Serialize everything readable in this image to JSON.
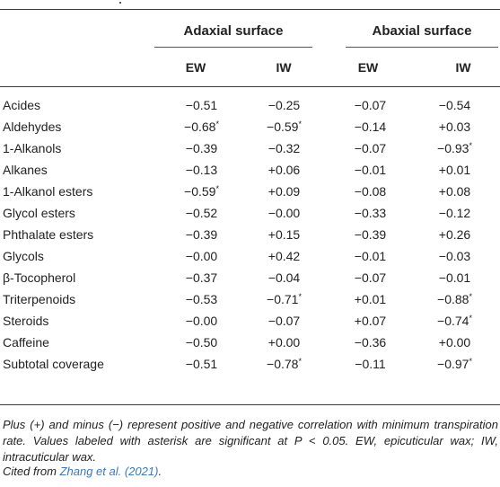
{
  "table": {
    "group_headers": [
      "Adaxial surface",
      "Abaxial surface"
    ],
    "column_headers": [
      "EW",
      "IW",
      "EW",
      "IW"
    ],
    "rows": [
      {
        "label": "Acides",
        "values": [
          "−0.51",
          "−0.25",
          "−0.07",
          "−0.54"
        ],
        "sig": [
          false,
          false,
          false,
          false
        ]
      },
      {
        "label": "Aldehydes",
        "values": [
          "−0.68",
          "−0.59",
          "−0.14",
          "+0.03"
        ],
        "sig": [
          true,
          true,
          false,
          false
        ]
      },
      {
        "label": "1-Alkanols",
        "values": [
          "−0.39",
          "−0.32",
          "−0.07",
          "−0.93"
        ],
        "sig": [
          false,
          false,
          false,
          true
        ]
      },
      {
        "label": "Alkanes",
        "values": [
          "−0.13",
          "+0.06",
          "−0.01",
          "+0.01"
        ],
        "sig": [
          false,
          false,
          false,
          false
        ]
      },
      {
        "label": "1-Alkanol esters",
        "values": [
          "−0.59",
          "+0.09",
          "−0.08",
          "+0.08"
        ],
        "sig": [
          true,
          false,
          false,
          false
        ]
      },
      {
        "label": "Glycol esters",
        "values": [
          "−0.52",
          "−0.00",
          "−0.33",
          "−0.12"
        ],
        "sig": [
          false,
          false,
          false,
          false
        ]
      },
      {
        "label": "Phthalate esters",
        "values": [
          "−0.39",
          "+0.15",
          "−0.39",
          "+0.26"
        ],
        "sig": [
          false,
          false,
          false,
          false
        ]
      },
      {
        "label": "Glycols",
        "values": [
          "−0.00",
          "+0.42",
          "−0.01",
          "−0.03"
        ],
        "sig": [
          false,
          false,
          false,
          false
        ]
      },
      {
        "label": "β-Tocopherol",
        "values": [
          "−0.37",
          "−0.04",
          "−0.07",
          "−0.01"
        ],
        "sig": [
          false,
          false,
          false,
          false
        ]
      },
      {
        "label": "Triterpenoids",
        "values": [
          "−0.53",
          "−0.71",
          "+0.01",
          "−0.88"
        ],
        "sig": [
          false,
          true,
          false,
          true
        ]
      },
      {
        "label": "Steroids",
        "values": [
          "−0.00",
          "−0.07",
          "+0.07",
          "−0.74"
        ],
        "sig": [
          false,
          false,
          false,
          true
        ]
      },
      {
        "label": "Caffeine",
        "values": [
          "−0.50",
          "+0.00",
          "−0.36",
          "+0.00"
        ],
        "sig": [
          false,
          false,
          false,
          false
        ]
      },
      {
        "label": "Subtotal coverage",
        "values": [
          "−0.51",
          "−0.78",
          "−0.11",
          "−0.97"
        ],
        "sig": [
          false,
          true,
          false,
          true
        ]
      }
    ],
    "asterisk": "*"
  },
  "footnote": "Plus (+) and minus (−) represent positive and negative correlation with minimum transpiration rate. Values labeled with asterisk are significant at P < 0.05. EW, epicuticular wax; IW, intracuticular wax.",
  "citation": {
    "prefix": "Cited from ",
    "link_text": "Zhang et al. (2021)",
    "suffix": "."
  }
}
